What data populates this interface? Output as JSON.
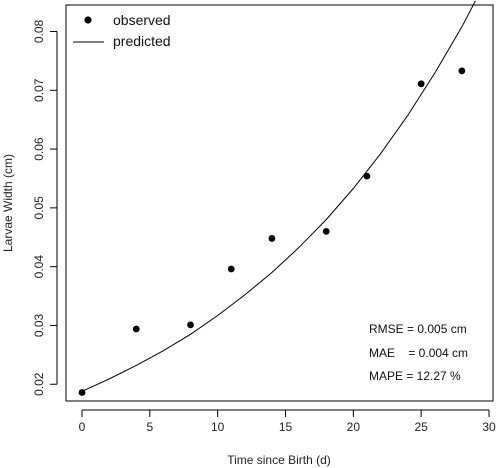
{
  "chart_data": {
    "type": "scatter",
    "xlabel": "Time since Birth (d)",
    "ylabel": "Larvae Width (cm)",
    "xlim": [
      0,
      30
    ],
    "ylim": [
      0.018,
      0.084
    ],
    "xticks": [
      0,
      5,
      10,
      15,
      20,
      25,
      30
    ],
    "yticks": [
      0.02,
      0.03,
      0.04,
      0.05,
      0.06,
      0.07,
      0.08
    ],
    "ytick_labels": [
      "0.02",
      "0.03",
      "0.04",
      "0.05",
      "0.06",
      "0.07",
      "0.08"
    ],
    "grid": false,
    "legend_position": "top-left",
    "series": [
      {
        "name": "observed",
        "kind": "points",
        "color": "#000000",
        "x": [
          0,
          4,
          8,
          11,
          14,
          18,
          21,
          25,
          28
        ],
        "y": [
          0.0186,
          0.0294,
          0.0301,
          0.0396,
          0.0448,
          0.046,
          0.0554,
          0.0711,
          0.0733
        ]
      },
      {
        "name": "predicted",
        "kind": "line",
        "color": "#000000",
        "x": [
          0,
          2,
          4,
          6,
          8,
          10,
          12,
          14,
          16,
          18,
          20,
          22,
          24,
          26,
          28,
          29
        ],
        "y": [
          0.0188,
          0.0209,
          0.0232,
          0.0257,
          0.0285,
          0.0317,
          0.0352,
          0.039,
          0.0433,
          0.048,
          0.0533,
          0.0592,
          0.0657,
          0.0729,
          0.0808,
          0.0852
        ]
      }
    ],
    "annotations": [
      "RMSE = 0.005 cm",
      "MAE    = 0.004 cm",
      "MAPE = 12.27 %"
    ]
  }
}
